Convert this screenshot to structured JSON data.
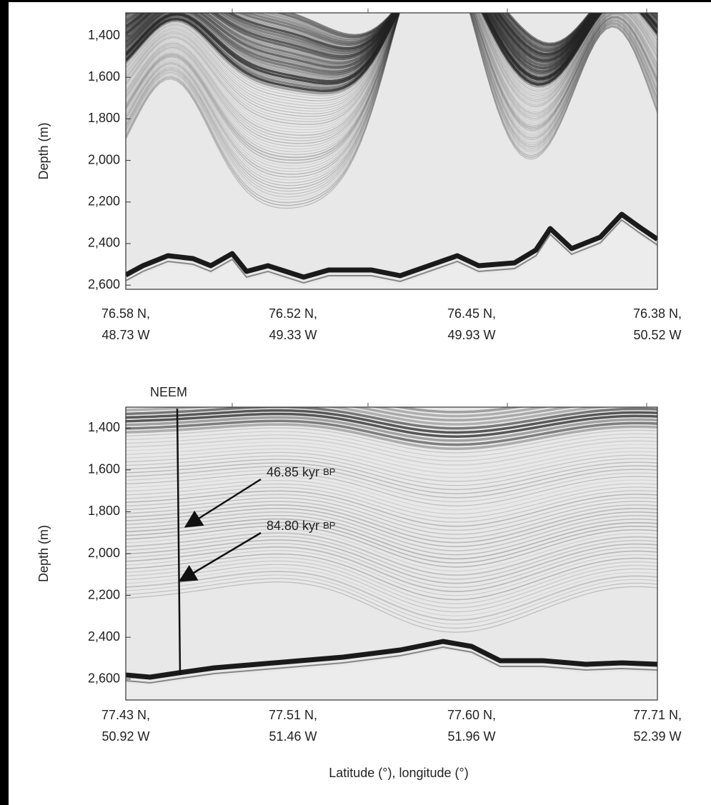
{
  "panels": [
    {
      "y_label": "Depth (m)",
      "ylim": [
        1290,
        2620
      ],
      "yticks": [
        {
          "value": 1400,
          "label": "1,400"
        },
        {
          "value": 1600,
          "label": "1,600"
        },
        {
          "value": 1800,
          "label": "1,800"
        },
        {
          "value": 2000,
          "label": "2,000"
        },
        {
          "value": 2200,
          "label": "2,200"
        },
        {
          "value": 2400,
          "label": "2,400"
        },
        {
          "value": 2600,
          "label": "2,600"
        }
      ],
      "xtick_labels": [
        [
          "76.58 N,",
          "48.73 W"
        ],
        [
          "76.52 N,",
          "49.33 W"
        ],
        [
          "76.45 N,",
          "49.93 W"
        ],
        [
          "76.38 N,",
          "50.52 W"
        ]
      ]
    },
    {
      "y_label": "Depth (m)",
      "ylim": [
        1300,
        2700
      ],
      "yticks": [
        {
          "value": 1400,
          "label": "1,400"
        },
        {
          "value": 1600,
          "label": "1,600"
        },
        {
          "value": 1800,
          "label": "1,800"
        },
        {
          "value": 2000,
          "label": "2,000"
        },
        {
          "value": 2200,
          "label": "2,200"
        },
        {
          "value": 2400,
          "label": "2,400"
        },
        {
          "value": 2600,
          "label": "2,600"
        }
      ],
      "xtick_labels": [
        [
          "77.43 N,",
          "50.92 W"
        ],
        [
          "77.51 N,",
          "51.46 W"
        ],
        [
          "77.60 N,",
          "51.96 W"
        ],
        [
          "77.71 N,",
          "52.39 W"
        ]
      ],
      "annotations": [
        {
          "text": "NEEM"
        },
        {
          "text": "46.85 kyr",
          "unit": "BP"
        },
        {
          "text": "84.80 kyr",
          "unit": "BP"
        }
      ]
    }
  ],
  "x_label": "Latitude (°), longitude (°)"
}
